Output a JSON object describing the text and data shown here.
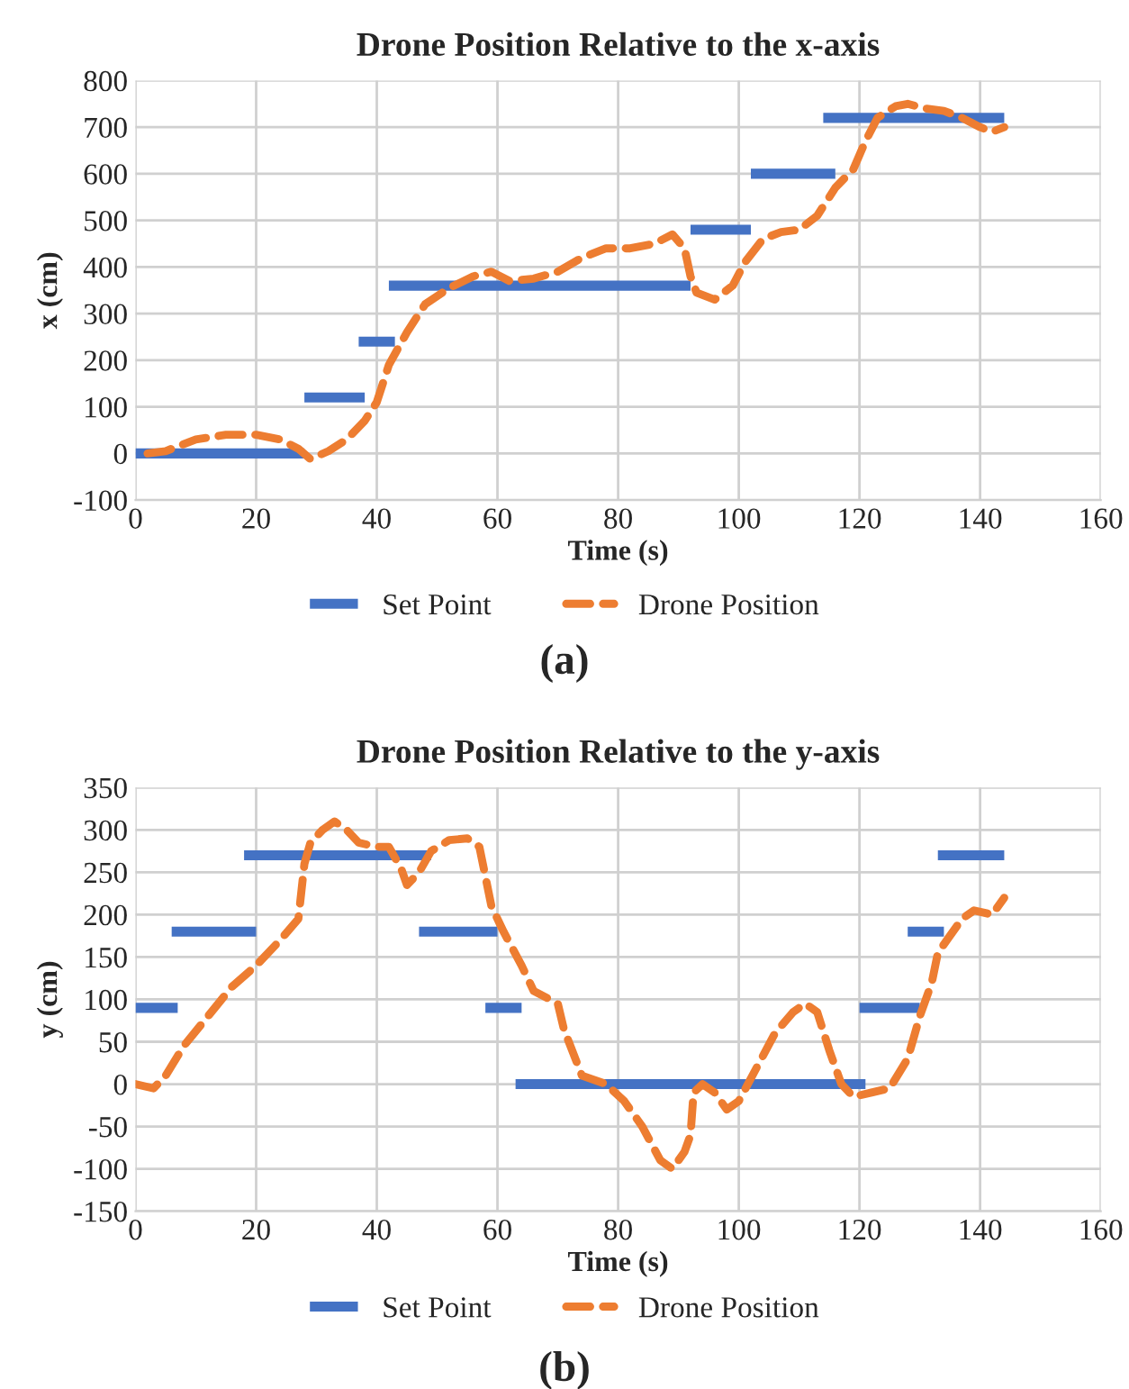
{
  "chart_data": [
    {
      "type": "line",
      "title": "Drone Position Relative to the x-axis",
      "xlabel": "Time (s)",
      "ylabel": "x (cm)",
      "xlim": [
        0,
        160
      ],
      "xticks": [
        0,
        20,
        40,
        60,
        80,
        100,
        120,
        140,
        160
      ],
      "ylim": [
        -100,
        800
      ],
      "yticks": [
        -100,
        0,
        100,
        200,
        300,
        400,
        500,
        600,
        700,
        800
      ],
      "grid": true,
      "legend": "bottom",
      "annotations": [
        "(a)"
      ],
      "series": [
        {
          "name": "Set Point",
          "color": "#4472c4",
          "line_style": "solid",
          "x": [
            0,
            28,
            null,
            28,
            38,
            null,
            37,
            43,
            null,
            42,
            92,
            null,
            92,
            102,
            null,
            102,
            116,
            null,
            114,
            144
          ],
          "values": [
            0,
            0,
            null,
            120,
            120,
            null,
            240,
            240,
            null,
            360,
            360,
            null,
            480,
            480,
            null,
            600,
            600,
            null,
            720,
            720
          ]
        },
        {
          "name": "Drone Position",
          "color": "#ed7d31",
          "line_style": "dashed",
          "x": [
            2,
            5,
            10,
            15,
            20,
            24,
            27,
            29,
            32,
            35,
            38,
            40,
            42,
            45,
            48,
            52,
            56,
            59,
            62,
            66,
            70,
            74,
            78,
            82,
            86,
            89,
            91,
            92,
            93,
            96,
            99,
            101,
            104,
            107,
            110,
            113,
            116,
            119,
            121,
            123,
            126,
            128,
            131,
            134,
            137,
            140,
            142,
            144
          ],
          "values": [
            0,
            5,
            30,
            40,
            40,
            30,
            10,
            -12,
            5,
            30,
            70,
            110,
            190,
            260,
            320,
            355,
            380,
            390,
            370,
            375,
            390,
            420,
            440,
            440,
            450,
            470,
            440,
            380,
            345,
            330,
            360,
            410,
            460,
            475,
            480,
            510,
            570,
            610,
            670,
            720,
            745,
            750,
            740,
            735,
            720,
            700,
            690,
            700
          ]
        }
      ]
    },
    {
      "type": "line",
      "title": "Drone Position Relative to the y-axis",
      "xlabel": "Time (s)",
      "ylabel": "y (cm)",
      "xlim": [
        0,
        160
      ],
      "xticks": [
        0,
        20,
        40,
        60,
        80,
        100,
        120,
        140,
        160
      ],
      "ylim": [
        -150,
        350
      ],
      "yticks": [
        -150,
        -100,
        -50,
        0,
        50,
        100,
        150,
        200,
        250,
        300,
        350
      ],
      "grid": true,
      "legend": "bottom",
      "annotations": [
        "(b)"
      ],
      "series": [
        {
          "name": "Set Point",
          "color": "#4472c4",
          "line_style": "solid",
          "x": [
            0,
            7,
            null,
            6,
            20,
            null,
            18,
            49,
            null,
            47,
            60,
            null,
            58,
            64,
            null,
            63,
            121,
            null,
            120,
            130,
            null,
            128,
            134,
            null,
            133,
            144
          ],
          "values": [
            90,
            90,
            null,
            180,
            180,
            null,
            270,
            270,
            null,
            180,
            180,
            null,
            90,
            90,
            null,
            0,
            0,
            null,
            90,
            90,
            null,
            180,
            180,
            null,
            270,
            270
          ]
        },
        {
          "name": "Drone Position",
          "color": "#ed7d31",
          "line_style": "dashed",
          "x": [
            0,
            3,
            5,
            8,
            12,
            16,
            20,
            24,
            27,
            28,
            29,
            31,
            33,
            35,
            37,
            40,
            42,
            44,
            45,
            47,
            49,
            52,
            55,
            57,
            59,
            61,
            64,
            66,
            70,
            71,
            74,
            78,
            81,
            84,
            87,
            89,
            91,
            92,
            92.5,
            94,
            96,
            98,
            100,
            103,
            106,
            109,
            111,
            113,
            115,
            117,
            119,
            122,
            125,
            128,
            130,
            132,
            133,
            135,
            137,
            139,
            142,
            144
          ],
          "values": [
            0,
            -5,
            10,
            45,
            80,
            115,
            140,
            170,
            195,
            260,
            285,
            300,
            310,
            300,
            285,
            280,
            280,
            255,
            235,
            250,
            275,
            288,
            290,
            280,
            210,
            180,
            140,
            110,
            95,
            65,
            10,
            0,
            -20,
            -50,
            -90,
            -100,
            -80,
            -60,
            -10,
            0,
            -10,
            -30,
            -20,
            20,
            60,
            85,
            95,
            85,
            40,
            0,
            -15,
            -10,
            -5,
            30,
            80,
            120,
            155,
            175,
            195,
            205,
            200,
            220
          ]
        }
      ]
    }
  ]
}
